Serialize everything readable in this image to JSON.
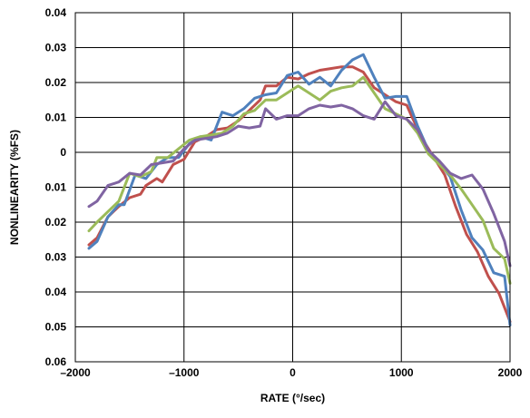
{
  "chart_data": {
    "type": "line",
    "title": "",
    "xlabel": "RATE (°/sec)",
    "ylabel": "NONLINEARITY (%FS)",
    "xlim": [
      -2000,
      2000
    ],
    "ylim": [
      -0.06,
      0.04
    ],
    "x_ticks": [
      -2000,
      -1000,
      0,
      1000,
      2000
    ],
    "x_tick_labels": [
      "–2000",
      "–1000",
      "0",
      "1000",
      "2000"
    ],
    "y_ticks": [
      0.04,
      0.03,
      0.02,
      0.01,
      0,
      -0.01,
      -0.02,
      -0.03,
      -0.04,
      -0.05,
      -0.06
    ],
    "y_tick_labels": [
      "0.04",
      "0.03",
      "0.02",
      "0.01",
      "0",
      "0.01",
      "0.02",
      "0.03",
      "0.04",
      "0.05",
      "0.06"
    ],
    "grid": true,
    "legend": "none",
    "series": [
      {
        "color": "#c0504d",
        "points": [
          [
            -1875,
            -0.0265
          ],
          [
            -1800,
            -0.0245
          ],
          [
            -1700,
            -0.0185
          ],
          [
            -1600,
            -0.0155
          ],
          [
            -1500,
            -0.013
          ],
          [
            -1400,
            -0.012
          ],
          [
            -1350,
            -0.0095
          ],
          [
            -1250,
            -0.0075
          ],
          [
            -1200,
            -0.0085
          ],
          [
            -1100,
            -0.0035
          ],
          [
            -1000,
            -0.002
          ],
          [
            -900,
            0.003
          ],
          [
            -800,
            0.0045
          ],
          [
            -700,
            0.0065
          ],
          [
            -600,
            0.007
          ],
          [
            -500,
            0.009
          ],
          [
            -400,
            0.012
          ],
          [
            -300,
            0.015
          ],
          [
            -250,
            0.019
          ],
          [
            -150,
            0.019
          ],
          [
            -50,
            0.0215
          ],
          [
            50,
            0.021
          ],
          [
            150,
            0.0225
          ],
          [
            250,
            0.0235
          ],
          [
            350,
            0.024
          ],
          [
            450,
            0.0245
          ],
          [
            550,
            0.0245
          ],
          [
            650,
            0.023
          ],
          [
            750,
            0.0185
          ],
          [
            850,
            0.0165
          ],
          [
            950,
            0.0145
          ],
          [
            1050,
            0.0135
          ],
          [
            1100,
            0.01
          ],
          [
            1200,
            0.0035
          ],
          [
            1300,
            -0.0015
          ],
          [
            1400,
            -0.0065
          ],
          [
            1500,
            -0.0155
          ],
          [
            1600,
            -0.0235
          ],
          [
            1700,
            -0.0285
          ],
          [
            1800,
            -0.0355
          ],
          [
            1900,
            -0.0405
          ],
          [
            2000,
            -0.0485
          ]
        ]
      },
      {
        "color": "#4f81bd",
        "points": [
          [
            -1875,
            -0.0275
          ],
          [
            -1800,
            -0.0255
          ],
          [
            -1700,
            -0.0185
          ],
          [
            -1600,
            -0.015
          ],
          [
            -1550,
            -0.015
          ],
          [
            -1450,
            -0.0065
          ],
          [
            -1350,
            -0.0075
          ],
          [
            -1250,
            -0.0035
          ],
          [
            -1150,
            -0.0015
          ],
          [
            -1050,
            -0.0015
          ],
          [
            -950,
            0.0025
          ],
          [
            -850,
            0.0045
          ],
          [
            -750,
            0.0035
          ],
          [
            -650,
            0.0115
          ],
          [
            -550,
            0.0105
          ],
          [
            -450,
            0.0125
          ],
          [
            -350,
            0.0155
          ],
          [
            -250,
            0.0165
          ],
          [
            -150,
            0.017
          ],
          [
            -50,
            0.022
          ],
          [
            50,
            0.023
          ],
          [
            150,
            0.0195
          ],
          [
            250,
            0.0215
          ],
          [
            350,
            0.019
          ],
          [
            450,
            0.0235
          ],
          [
            550,
            0.0265
          ],
          [
            650,
            0.028
          ],
          [
            750,
            0.0215
          ],
          [
            850,
            0.0155
          ],
          [
            950,
            0.016
          ],
          [
            1050,
            0.016
          ],
          [
            1150,
            0.0075
          ],
          [
            1250,
            0.0005
          ],
          [
            1350,
            -0.003
          ],
          [
            1450,
            -0.007
          ],
          [
            1550,
            -0.0165
          ],
          [
            1650,
            -0.0245
          ],
          [
            1750,
            -0.028
          ],
          [
            1850,
            -0.0345
          ],
          [
            1950,
            -0.0355
          ],
          [
            2000,
            -0.0495
          ]
        ]
      },
      {
        "color": "#9bbb59",
        "points": [
          [
            -1875,
            -0.0225
          ],
          [
            -1800,
            -0.02
          ],
          [
            -1700,
            -0.017
          ],
          [
            -1600,
            -0.014
          ],
          [
            -1500,
            -0.006
          ],
          [
            -1400,
            -0.007
          ],
          [
            -1300,
            -0.0055
          ],
          [
            -1250,
            -0.0015
          ],
          [
            -1150,
            -0.0015
          ],
          [
            -1050,
            0.001
          ],
          [
            -950,
            0.0035
          ],
          [
            -850,
            0.0045
          ],
          [
            -750,
            0.005
          ],
          [
            -650,
            0.0055
          ],
          [
            -550,
            0.0075
          ],
          [
            -450,
            0.011
          ],
          [
            -350,
            0.012
          ],
          [
            -250,
            0.015
          ],
          [
            -150,
            0.015
          ],
          [
            -50,
            0.017
          ],
          [
            50,
            0.019
          ],
          [
            150,
            0.017
          ],
          [
            250,
            0.015
          ],
          [
            350,
            0.0175
          ],
          [
            450,
            0.0185
          ],
          [
            550,
            0.019
          ],
          [
            650,
            0.0215
          ],
          [
            750,
            0.017
          ],
          [
            850,
            0.0125
          ],
          [
            950,
            0.011
          ],
          [
            1050,
            0.0095
          ],
          [
            1150,
            0.0055
          ],
          [
            1250,
            -0.0005
          ],
          [
            1350,
            -0.0035
          ],
          [
            1450,
            -0.0065
          ],
          [
            1550,
            -0.0105
          ],
          [
            1650,
            -0.015
          ],
          [
            1750,
            -0.0195
          ],
          [
            1850,
            -0.0275
          ],
          [
            1950,
            -0.0305
          ],
          [
            2000,
            -0.0375
          ]
        ]
      },
      {
        "color": "#8064a2",
        "points": [
          [
            -1875,
            -0.0155
          ],
          [
            -1800,
            -0.014
          ],
          [
            -1700,
            -0.0095
          ],
          [
            -1600,
            -0.0085
          ],
          [
            -1500,
            -0.006
          ],
          [
            -1400,
            -0.0065
          ],
          [
            -1300,
            -0.0035
          ],
          [
            -1200,
            -0.003
          ],
          [
            -1100,
            -0.0025
          ],
          [
            -1000,
            0.001
          ],
          [
            -900,
            0.0035
          ],
          [
            -800,
            0.004
          ],
          [
            -700,
            0.0045
          ],
          [
            -600,
            0.0055
          ],
          [
            -500,
            0.0075
          ],
          [
            -400,
            0.007
          ],
          [
            -300,
            0.0075
          ],
          [
            -250,
            0.0125
          ],
          [
            -150,
            0.0095
          ],
          [
            -50,
            0.0105
          ],
          [
            50,
            0.0105
          ],
          [
            150,
            0.0125
          ],
          [
            250,
            0.0135
          ],
          [
            350,
            0.013
          ],
          [
            450,
            0.0135
          ],
          [
            550,
            0.0125
          ],
          [
            650,
            0.0105
          ],
          [
            750,
            0.0095
          ],
          [
            850,
            0.0145
          ],
          [
            950,
            0.0105
          ],
          [
            1050,
            0.0095
          ],
          [
            1150,
            0.0065
          ],
          [
            1250,
            0.0005
          ],
          [
            1350,
            -0.0025
          ],
          [
            1450,
            -0.006
          ],
          [
            1550,
            -0.0075
          ],
          [
            1650,
            -0.0065
          ],
          [
            1750,
            -0.0105
          ],
          [
            1850,
            -0.0175
          ],
          [
            1950,
            -0.0255
          ],
          [
            2000,
            -0.0325
          ]
        ]
      }
    ]
  }
}
